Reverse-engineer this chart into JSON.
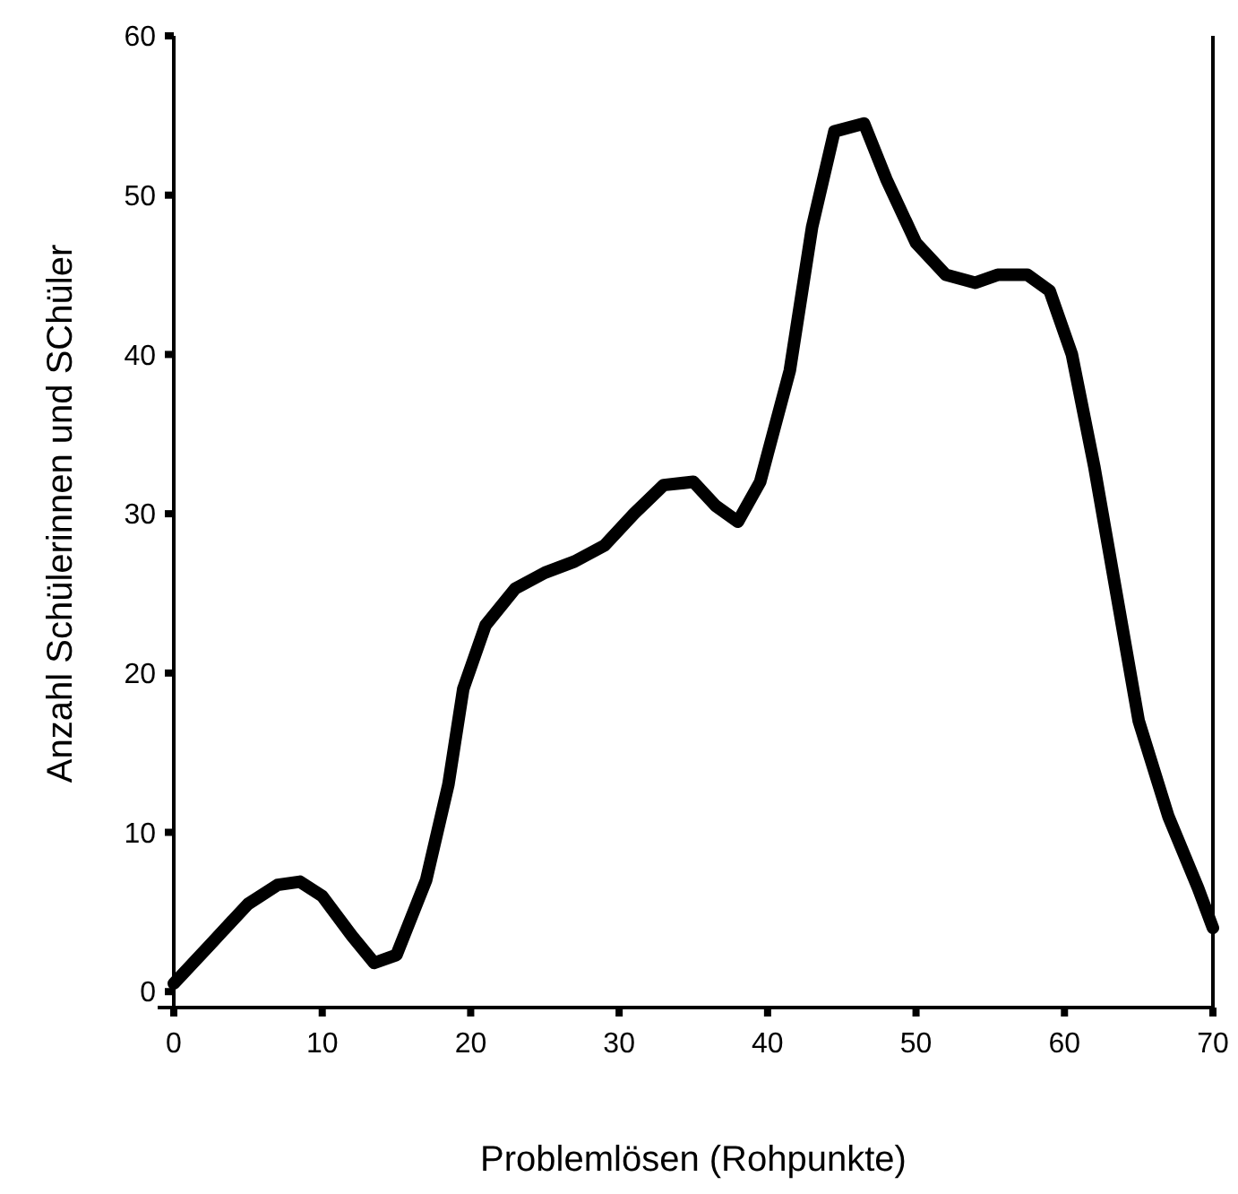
{
  "chart_data": {
    "type": "line",
    "xlabel": "Problemlösen (Rohpunkte)",
    "ylabel": "Anzahl Schülerinnen und SChüler",
    "x": [
      0,
      2.5,
      5,
      7,
      8.5,
      10,
      12,
      13.5,
      15,
      17,
      18.5,
      19.5,
      21,
      23,
      25,
      27,
      29,
      31,
      33,
      35,
      36.5,
      38,
      39.5,
      41.5,
      43,
      44.5,
      46.5,
      48,
      50,
      52,
      54,
      55.5,
      57.5,
      59,
      60.5,
      62,
      63.5,
      65,
      67,
      69,
      70
    ],
    "series": [
      {
        "color": "#000000",
        "values": [
          0.5,
          3,
          5.5,
          6.7,
          6.9,
          6,
          3.5,
          1.8,
          2.3,
          7,
          13,
          19,
          23,
          25.3,
          26.3,
          27,
          28,
          30,
          31.8,
          32,
          30.5,
          29.5,
          32,
          39,
          48,
          54,
          54.5,
          51,
          47,
          45,
          44.5,
          45,
          45,
          44,
          40,
          33,
          25,
          17,
          11,
          6.5,
          4
        ]
      }
    ],
    "xlim": [
      0,
      70
    ],
    "xticks": [
      0,
      10,
      20,
      30,
      40,
      50,
      60,
      70
    ],
    "ylim": [
      -1,
      60
    ],
    "yticks": [
      0,
      10,
      20,
      30,
      40,
      50,
      60
    ],
    "grid": false,
    "marker": "none",
    "line_style": "solid"
  }
}
